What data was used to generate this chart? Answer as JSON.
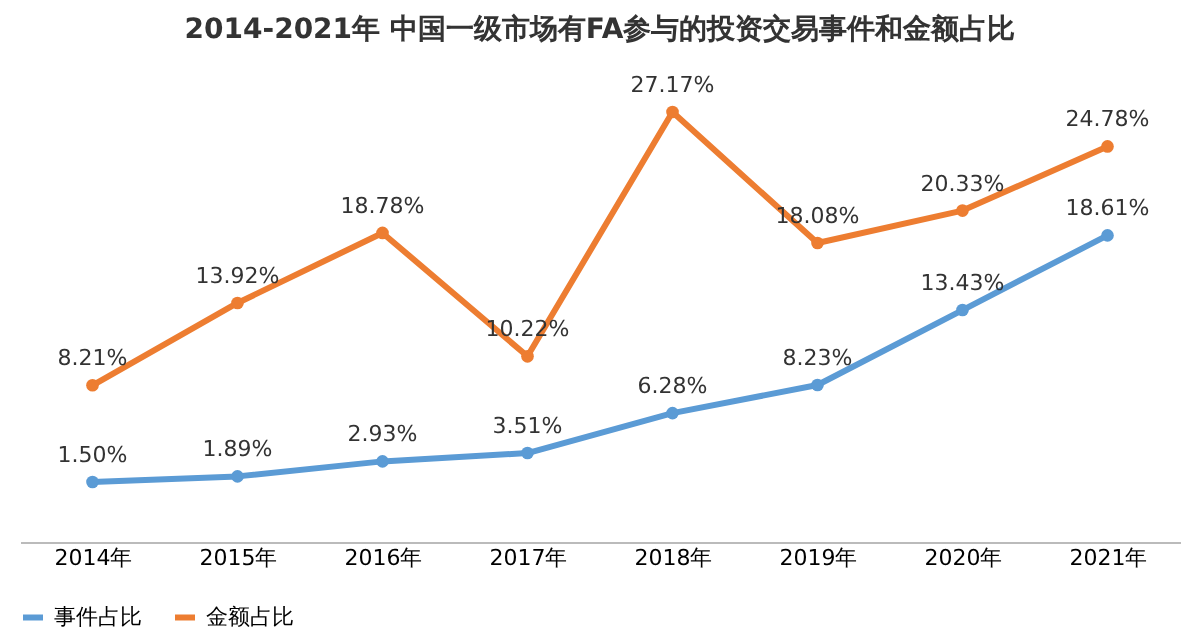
{
  "chart_data": {
    "type": "line",
    "title": "2014-2021年 中国一级市场有FA参与的投资交易事件和金额占比",
    "categories": [
      "2014年",
      "2015年",
      "2016年",
      "2017年",
      "2018年",
      "2019年",
      "2020年",
      "2021年"
    ],
    "series": [
      {
        "name": "事件占比",
        "color": "#5b9bd5",
        "values": [
          1.5,
          1.89,
          2.93,
          3.51,
          6.28,
          8.23,
          13.43,
          18.61
        ],
        "value_labels": [
          "1.50%",
          "1.89%",
          "2.93%",
          "3.51%",
          "6.28%",
          "8.23%",
          "13.43%",
          "18.61%"
        ]
      },
      {
        "name": "金额占比",
        "color": "#ed7d31",
        "values": [
          8.21,
          13.92,
          18.78,
          10.22,
          27.17,
          18.08,
          20.33,
          24.78
        ],
        "value_labels": [
          "8.21%",
          "13.92%",
          "18.78%",
          "10.22%",
          "27.17%",
          "18.08%",
          "20.33%",
          "24.78%"
        ]
      }
    ],
    "marker": "circle",
    "legend": "bottom",
    "grid": false,
    "tick_labels": "x"
  }
}
